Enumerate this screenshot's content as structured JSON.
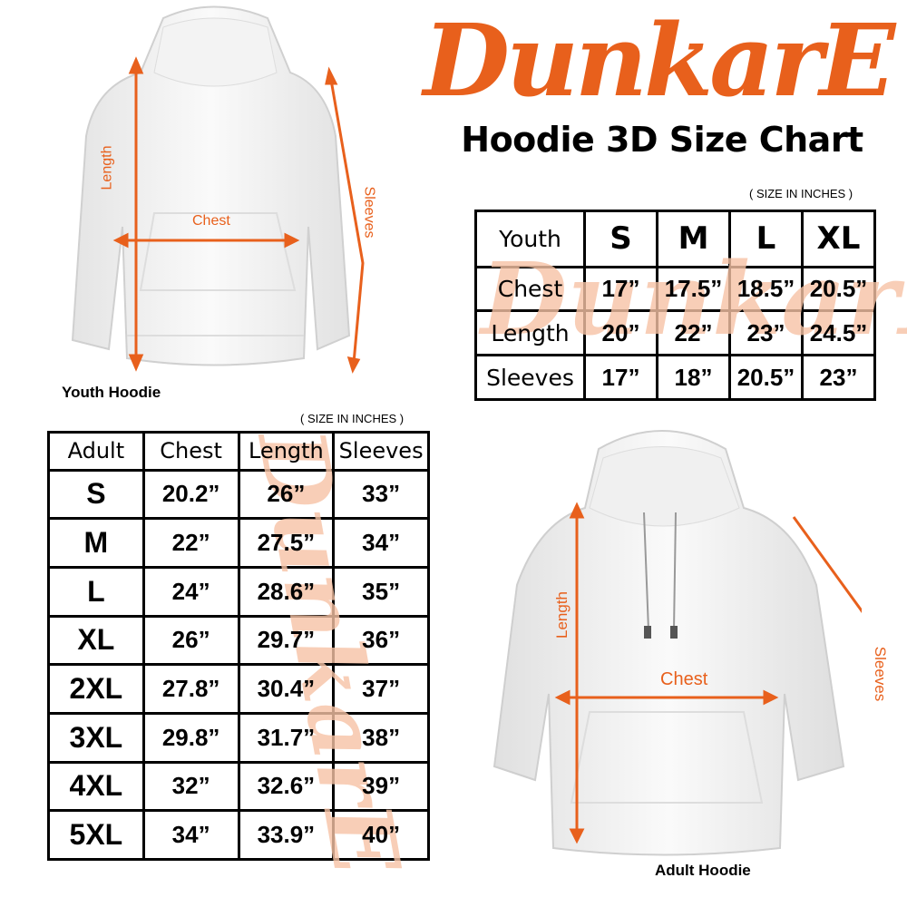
{
  "brand": {
    "logo_text": "DunkarE",
    "color": "#e8601c",
    "watermark_color": "#f7c3a6"
  },
  "title": "Hoodie 3D Size Chart",
  "youth": {
    "unit_note": "( SIZE IN INCHES )",
    "caption": "Youth Hoodie",
    "diagram_labels": {
      "length": "Length",
      "chest": "Chest",
      "sleeves": "Sleeves"
    },
    "header": [
      "Youth",
      "S",
      "M",
      "L",
      "XL"
    ],
    "rows": [
      {
        "label": "Chest",
        "values": [
          "17”",
          "17.5”",
          "18.5”",
          "20.5”"
        ]
      },
      {
        "label": "Length",
        "values": [
          "20”",
          "22”",
          "23”",
          "24.5”"
        ]
      },
      {
        "label": "Sleeves",
        "values": [
          "17”",
          "18”",
          "20.5”",
          "23”"
        ]
      }
    ]
  },
  "adult": {
    "unit_note": "( SIZE IN INCHES )",
    "caption": "Adult Hoodie",
    "diagram_labels": {
      "length": "Length",
      "chest": "Chest",
      "sleeves": "Sleeves"
    },
    "header": [
      "Adult",
      "Chest",
      "Length",
      "Sleeves"
    ],
    "rows": [
      {
        "size": "S",
        "values": [
          "20.2”",
          "26”",
          "33”"
        ]
      },
      {
        "size": "M",
        "values": [
          "22”",
          "27.5”",
          "34”"
        ]
      },
      {
        "size": "L",
        "values": [
          "24”",
          "28.6”",
          "35”"
        ]
      },
      {
        "size": "XL",
        "values": [
          "26”",
          "29.7”",
          "36”"
        ]
      },
      {
        "size": "2XL",
        "values": [
          "27.8”",
          "30.4”",
          "37”"
        ]
      },
      {
        "size": "3XL",
        "values": [
          "29.8”",
          "31.7”",
          "38”"
        ]
      },
      {
        "size": "4XL",
        "values": [
          "32”",
          "32.6”",
          "39”"
        ]
      },
      {
        "size": "5XL",
        "values": [
          "34”",
          "33.9”",
          "40”"
        ]
      }
    ]
  }
}
